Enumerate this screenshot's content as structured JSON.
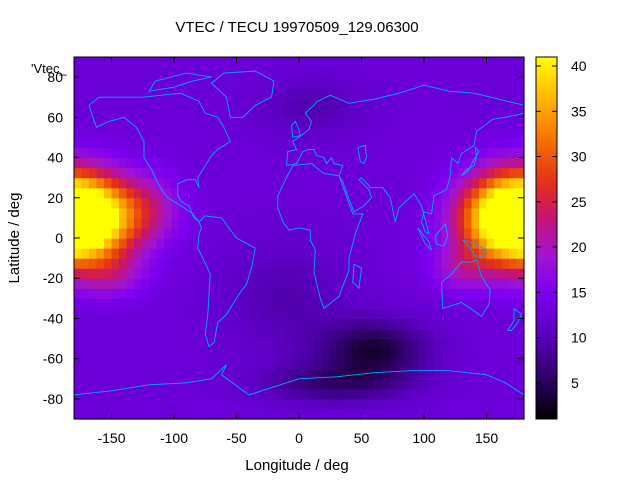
{
  "chart_data": {
    "type": "heatmap",
    "title": "VTEC / TECU 19970509_129.06300",
    "xlabel": "Longitude / deg",
    "ylabel": "Latitude / deg",
    "key_label": "'Vtec_",
    "xlim": [
      -180,
      180
    ],
    "ylim": [
      -90,
      90
    ],
    "x_ticks": [
      -150,
      -100,
      -50,
      0,
      50,
      100,
      150
    ],
    "y_ticks": [
      -80,
      -60,
      -40,
      -20,
      0,
      20,
      40,
      60,
      80
    ],
    "colorbar": {
      "min": 1,
      "max": 41,
      "ticks": [
        5,
        10,
        15,
        20,
        25,
        30,
        35,
        40
      ],
      "palette": "black-purple-red-orange-yellow"
    },
    "grid": false,
    "overlay": "coastlines",
    "coastline_color": "#00aaff",
    "features": [
      {
        "name": "peak-west",
        "lon": -175,
        "lat": 10,
        "value": 40
      },
      {
        "name": "peak-east",
        "lon": 180,
        "lat": 10,
        "value": 38
      },
      {
        "name": "minimum-south",
        "lon": 60,
        "lat": -55,
        "value": 2
      }
    ]
  }
}
